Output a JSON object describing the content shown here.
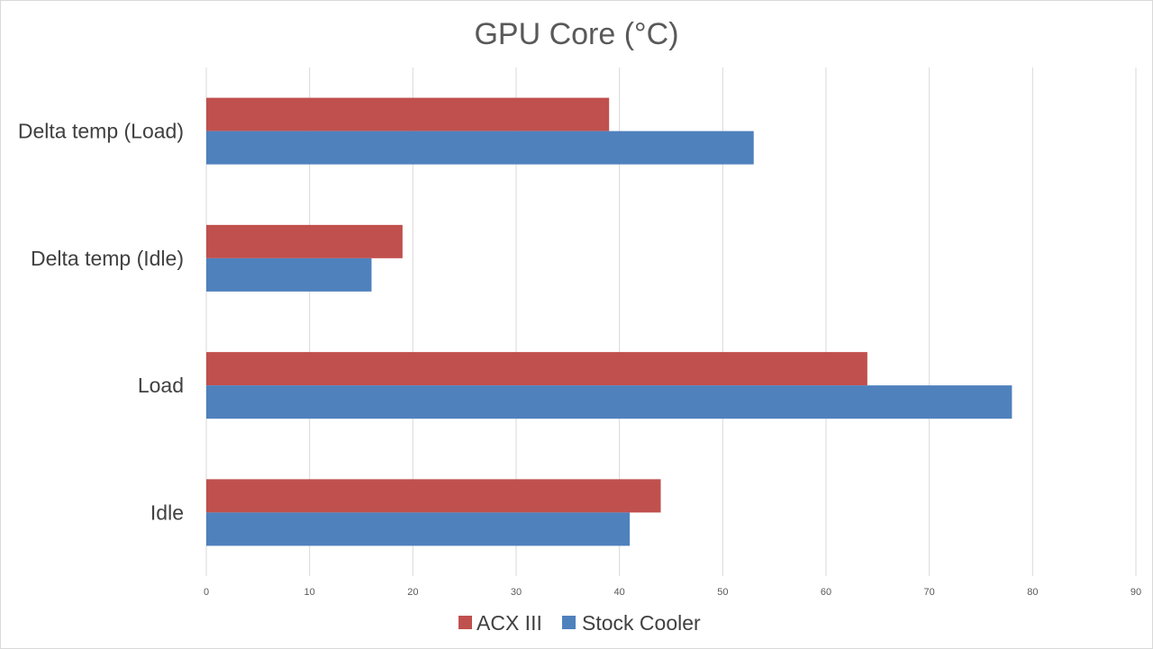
{
  "chart_data": {
    "type": "bar",
    "orientation": "horizontal",
    "title": "GPU Core (°C)",
    "xlabel": "",
    "ylabel": "",
    "categories": [
      "Idle",
      "Load",
      "Delta temp (Idle)",
      "Delta temp (Load)"
    ],
    "series": [
      {
        "name": "ACX III",
        "color": "#c0504d",
        "values": [
          44,
          64,
          19,
          39
        ]
      },
      {
        "name": "Stock Cooler",
        "color": "#4f81bd",
        "values": [
          41,
          78,
          16,
          53
        ]
      }
    ],
    "xlim": [
      0,
      90
    ],
    "ticks": [
      0,
      10,
      20,
      30,
      40,
      50,
      60,
      70,
      80,
      90
    ],
    "grid": true,
    "gridColor": "#d9d9d9",
    "legend": "bottom"
  }
}
